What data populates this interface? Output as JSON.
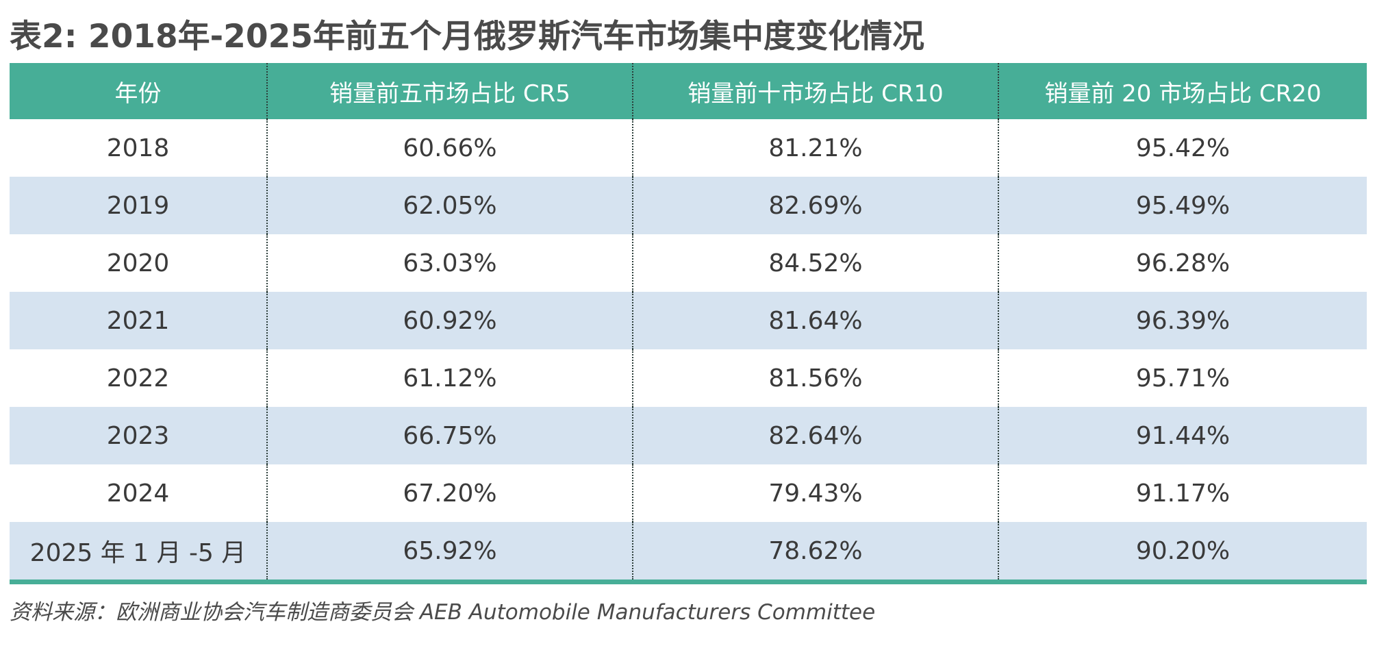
{
  "title": "表2: 2018年-2025年前五个月俄罗斯汽车市场集中度变化情况",
  "table": {
    "headers": [
      "年份",
      "销量前五市场占比 CR5",
      "销量前十市场占比 CR10",
      "销量前 20 市场占比 CR20"
    ],
    "rows": [
      {
        "year": "2018",
        "cr5": "60.66%",
        "cr10": "81.21%",
        "cr20": "95.42%"
      },
      {
        "year": "2019",
        "cr5": "62.05%",
        "cr10": "82.69%",
        "cr20": "95.49%"
      },
      {
        "year": "2020",
        "cr5": "63.03%",
        "cr10": "84.52%",
        "cr20": "96.28%"
      },
      {
        "year": "2021",
        "cr5": "60.92%",
        "cr10": "81.64%",
        "cr20": "96.39%"
      },
      {
        "year": "2022",
        "cr5": "61.12%",
        "cr10": "81.56%",
        "cr20": "95.71%"
      },
      {
        "year": "2023",
        "cr5": "66.75%",
        "cr10": "82.64%",
        "cr20": "91.44%"
      },
      {
        "year": "2024",
        "cr5": "67.20%",
        "cr10": "79.43%",
        "cr20": "91.17%"
      },
      {
        "year": "2025 年 1 月 -5 月",
        "cr5": "65.92%",
        "cr10": "78.62%",
        "cr20": "90.20%"
      }
    ]
  },
  "source": "资料来源：欧洲商业协会汽车制造商委员会 AEB Automobile Manufacturers Committee",
  "colors": {
    "header_bg": "#47ae97",
    "stripe_bg": "#d6e3f0",
    "text": "#3a3a3a"
  }
}
